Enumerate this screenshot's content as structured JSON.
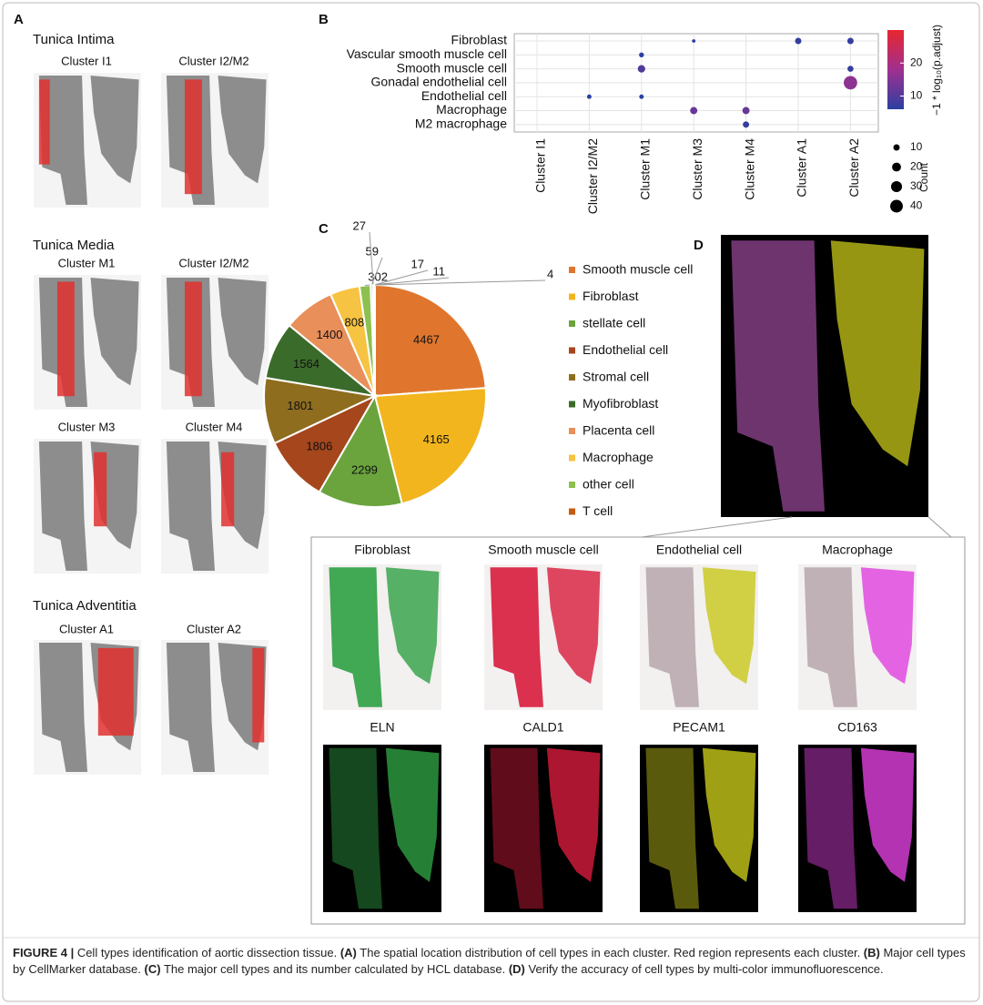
{
  "panel_labels": [
    "A",
    "B",
    "C",
    "D"
  ],
  "panel_a": {
    "groups": [
      {
        "title": "Tunica Intima",
        "clusters": [
          "Cluster I1",
          "Cluster I2/M2"
        ]
      },
      {
        "title": "Tunica Media",
        "clusters": [
          "Cluster M1",
          "Cluster I2/M2",
          "Cluster M3",
          "Cluster M4"
        ]
      },
      {
        "title": "Tunica Adventitia",
        "clusters": [
          "Cluster A1",
          "Cluster A2"
        ]
      }
    ]
  },
  "chart_data": [
    {
      "type": "dot",
      "categories": [
        "Cluster I1",
        "Cluster I2/M2",
        "Cluster M1",
        "Cluster M3",
        "Cluster M4",
        "Cluster A1",
        "Cluster A2"
      ],
      "rows": [
        "Fibroblast",
        "Vascular smooth muscle cell",
        "Smooth muscle cell",
        "Gonadal endothelial cell",
        "Endothelial cell",
        "Macrophage",
        "M2 macrophage"
      ],
      "points": [
        {
          "x": "Cluster M3",
          "y": "Fibroblast",
          "count": 3,
          "score": 6
        },
        {
          "x": "Cluster A1",
          "y": "Fibroblast",
          "count": 10,
          "score": 7
        },
        {
          "x": "Cluster A2",
          "y": "Fibroblast",
          "count": 10,
          "score": 7
        },
        {
          "x": "Cluster M1",
          "y": "Vascular smooth muscle cell",
          "count": 6,
          "score": 6
        },
        {
          "x": "Cluster M1",
          "y": "Smooth muscle cell",
          "count": 14,
          "score": 10
        },
        {
          "x": "Cluster A2",
          "y": "Smooth muscle cell",
          "count": 9,
          "score": 7
        },
        {
          "x": "Cluster A2",
          "y": "Gonadal endothelial cell",
          "count": 45,
          "score": 16
        },
        {
          "x": "Cluster I2/M2",
          "y": "Endothelial cell",
          "count": 5,
          "score": 6
        },
        {
          "x": "Cluster M1",
          "y": "Endothelial cell",
          "count": 5,
          "score": 6
        },
        {
          "x": "Cluster M3",
          "y": "Macrophage",
          "count": 13,
          "score": 12
        },
        {
          "x": "Cluster M4",
          "y": "Macrophage",
          "count": 13,
          "score": 12
        },
        {
          "x": "Cluster M4",
          "y": "M2 macrophage",
          "count": 10,
          "score": 7
        }
      ],
      "colors": [
        "#2b3fa0",
        "#a0308f",
        "#e8262f"
      ],
      "color_title": "−1 * log₁₀(p.adjust)",
      "colorlim": [
        6,
        30
      ],
      "colorticks": [
        10,
        20
      ],
      "size_title": "Count",
      "size_ticks": [
        10,
        20,
        30,
        40
      ]
    },
    {
      "type": "pie",
      "categories": [
        "Smooth muscle cell",
        "Fibroblast",
        "stellate cell",
        "Endothelial cell",
        "Stromal cell",
        "Myofibroblast",
        "Placenta cell",
        "Macrophage",
        "other cell",
        "T cell",
        null,
        null,
        null,
        null
      ],
      "values": [
        4467,
        4165,
        2299,
        1806,
        1801,
        1564,
        1400,
        808,
        302,
        59,
        27,
        17,
        11,
        4
      ],
      "colors": [
        "#e0762e",
        "#f2b51e",
        "#6ba43d",
        "#a5461d",
        "#8e6d1f",
        "#3b6b2a",
        "#e88f5a",
        "#f6c342",
        "#8dc14f",
        "#c55a11",
        "#4472c4",
        "#a5a5a5",
        "#5b9bd5",
        "#264478"
      ]
    }
  ],
  "panel_d": {
    "cell_types": [
      "Fibroblast",
      "Smooth muscle cell",
      "Endothelial cell",
      "Macrophage"
    ],
    "markers": [
      {
        "name": "ELN",
        "color": "#2ea043"
      },
      {
        "name": "CALD1",
        "color": "#d81b3c"
      },
      {
        "name": "PECAM1",
        "color": "#c8c81a"
      },
      {
        "name": "CD163",
        "color": "#e040e0"
      }
    ]
  },
  "caption": [
    {
      "text": "FIGURE 4 |",
      "bold": true
    },
    {
      "text": " Cell types identification of aortic dissection tissue. ",
      "bold": false
    },
    {
      "text": "(A)",
      "bold": true
    },
    {
      "text": " The spatial location distribution of cell types in each cluster. Red region represents each cluster. ",
      "bold": false
    },
    {
      "text": "(B)",
      "bold": true
    },
    {
      "text": " Major cell types by CellMarker database. ",
      "bold": false
    },
    {
      "text": "(C)",
      "bold": true
    },
    {
      "text": " The major cell types and its number calculated by HCL database. ",
      "bold": false
    },
    {
      "text": "(D)",
      "bold": true
    },
    {
      "text": " Verify the accuracy of cell types by multi-color immunofluorescence.",
      "bold": false
    }
  ]
}
